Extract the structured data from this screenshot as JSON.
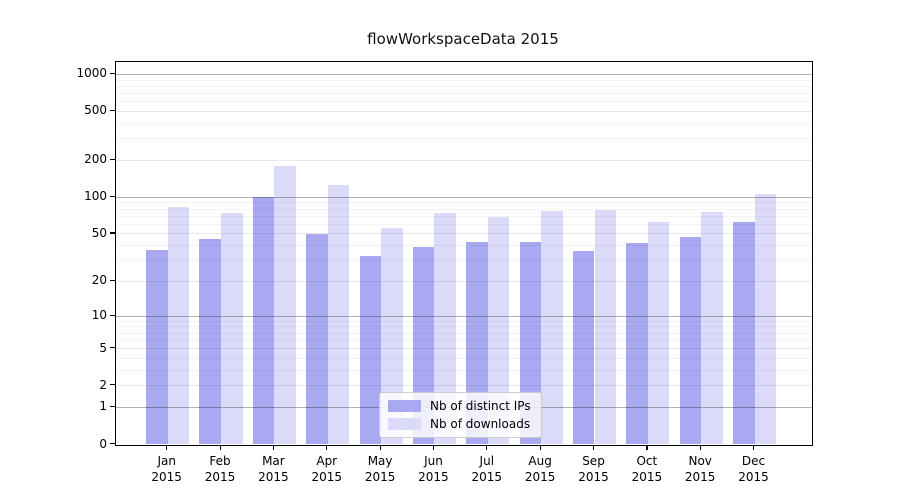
{
  "title": "flowWorkspaceData 2015",
  "colors": {
    "distinct_ips": "#a9a9f2",
    "downloads": "#dbdbf9",
    "grid_strong": "rgba(0,0,0,0.30)",
    "grid_mid": "rgba(0,0,0,0.09)",
    "grid_minor": "rgba(0,0,0,0.05)",
    "axis": "#000000"
  },
  "legend": {
    "items": [
      {
        "label": "Nb of distinct IPs",
        "key": "distinct_ips"
      },
      {
        "label": "Nb of downloads",
        "key": "downloads"
      }
    ]
  },
  "y_axis": {
    "tick_labels": [
      "1000",
      "500",
      "200",
      "100",
      "50",
      "20",
      "10",
      "5",
      "2",
      "1",
      "0"
    ],
    "tick_values": [
      1000,
      500,
      200,
      100,
      50,
      20,
      10,
      5,
      2,
      1,
      0
    ]
  },
  "x_axis": {
    "months": [
      "Jan",
      "Feb",
      "Mar",
      "Apr",
      "May",
      "Jun",
      "Jul",
      "Aug",
      "Sep",
      "Oct",
      "Nov",
      "Dec"
    ],
    "year": "2015"
  },
  "chart_data": {
    "type": "bar",
    "title": "flowWorkspaceData 2015",
    "categories": [
      "Jan 2015",
      "Feb 2015",
      "Mar 2015",
      "Apr 2015",
      "May 2015",
      "Jun 2015",
      "Jul 2015",
      "Aug 2015",
      "Sep 2015",
      "Oct 2015",
      "Nov 2015",
      "Dec 2015"
    ],
    "series": [
      {
        "name": "Nb of distinct IPs",
        "key": "distinct_ips",
        "values": [
          37,
          45,
          100,
          50,
          33,
          39,
          43,
          43,
          36,
          42,
          47,
          63
        ]
      },
      {
        "name": "Nb of downloads",
        "key": "downloads",
        "values": [
          84,
          75,
          180,
          127,
          56,
          74,
          69,
          77,
          79,
          63,
          76,
          107
        ]
      }
    ],
    "yscale": "log1p",
    "ylim": [
      0,
      1280
    ],
    "grid": "on",
    "legend_position": "lower-center-inside",
    "gridlines_strong": [
      1,
      10,
      100,
      1000
    ],
    "gridlines_mid": [
      2,
      5,
      20,
      50,
      200,
      500
    ],
    "gridlines_minor": [
      3,
      4,
      6,
      7,
      8,
      9,
      30,
      40,
      60,
      70,
      80,
      90,
      300,
      400,
      600,
      700,
      800,
      900
    ]
  }
}
